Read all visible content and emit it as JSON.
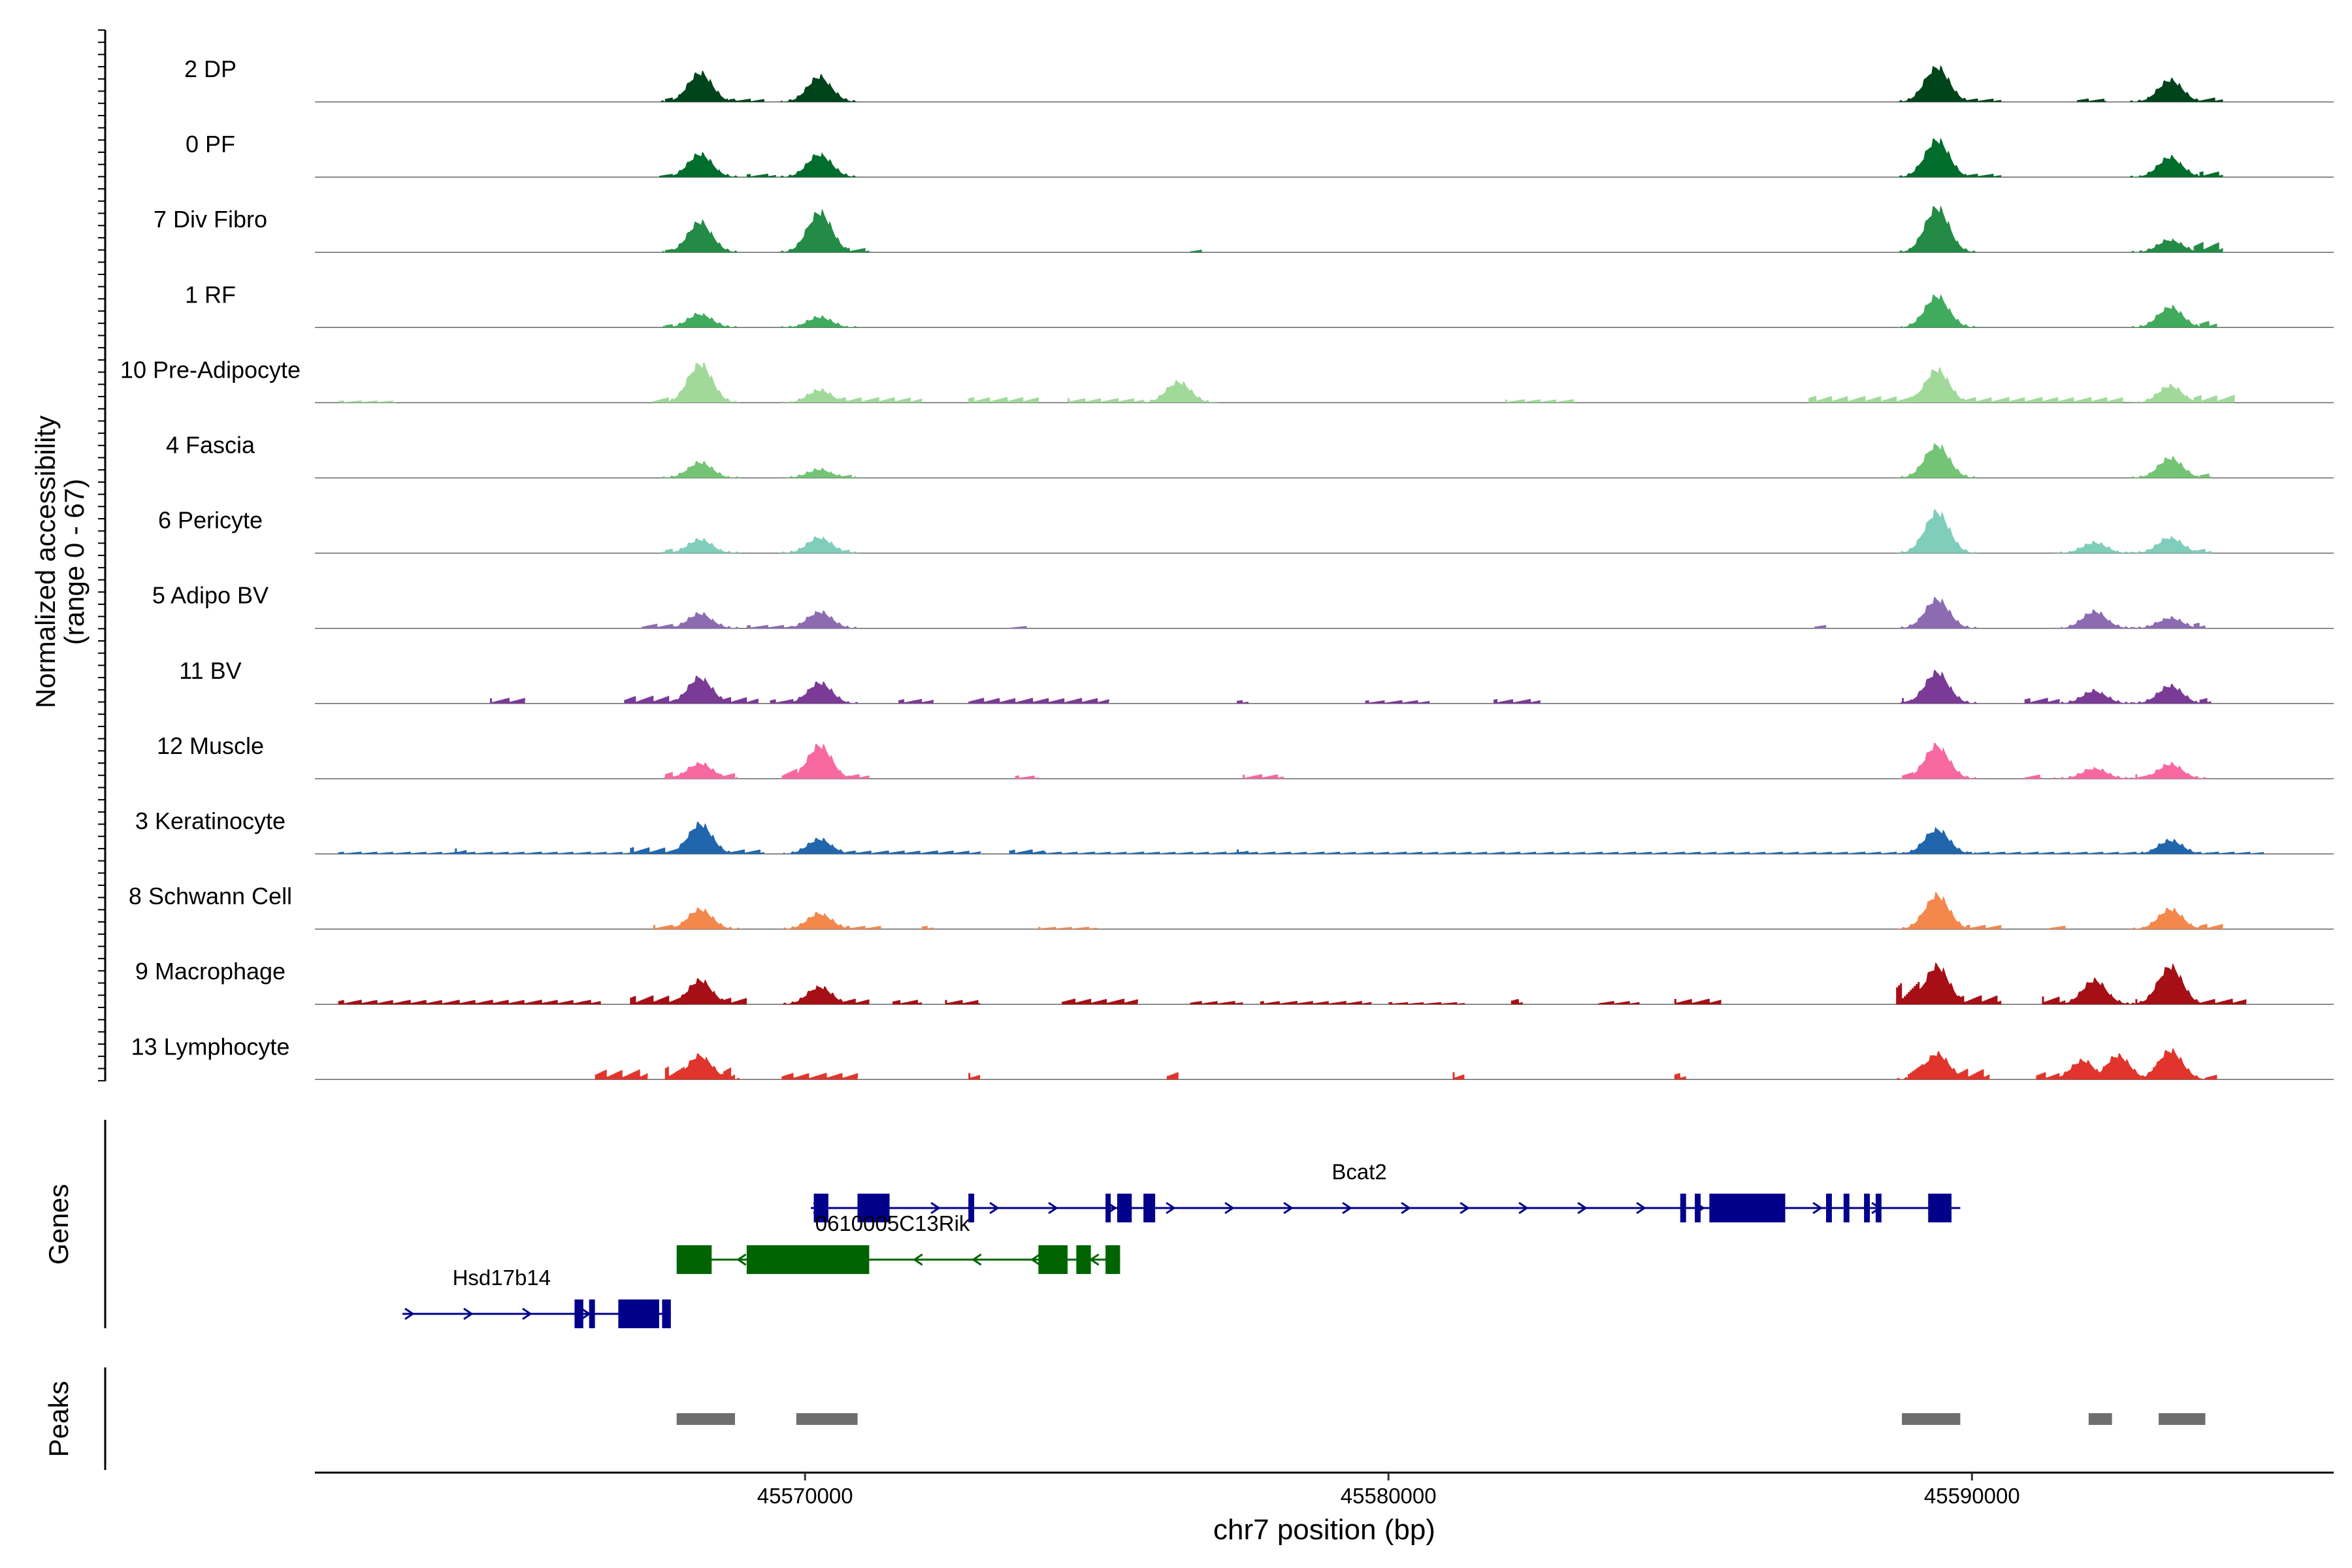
{
  "chart_data": {
    "type": "area",
    "title": "",
    "xlabel": "chr7 position (bp)",
    "ylabel_line1": "Normalized accessibility",
    "ylabel_line2": "(range 0 - 67)",
    "y_range": [
      0,
      67
    ],
    "x_range": [
      45561600,
      45596200
    ],
    "x_ticks": [
      45570000,
      45580000,
      45590000
    ],
    "x_tick_labels": [
      "45570000",
      "45580000",
      "45590000"
    ],
    "panel_labels": {
      "genes": "Genes",
      "peaks": "Peaks"
    },
    "tracks": [
      {
        "name": "2 DP",
        "color": "#00441b",
        "peaks": [
          [
            45568200,
            28
          ],
          [
            45570250,
            24
          ],
          [
            45589400,
            34
          ],
          [
            45593400,
            21
          ]
        ],
        "noise": [
          [
            45567600,
            45568000,
            4
          ],
          [
            45568700,
            45569300,
            3
          ],
          [
            45589800,
            45590500,
            3
          ],
          [
            45591800,
            45592300,
            3
          ],
          [
            45593900,
            45594300,
            4
          ]
        ]
      },
      {
        "name": "0 PF",
        "color": "#006d2c",
        "peaks": [
          [
            45568200,
            22
          ],
          [
            45570250,
            22
          ],
          [
            45589400,
            36
          ],
          [
            45593400,
            19
          ]
        ],
        "noise": [
          [
            45567500,
            45568000,
            3
          ],
          [
            45569000,
            45569500,
            3
          ],
          [
            45589900,
            45590500,
            3
          ],
          [
            45593900,
            45594300,
            5
          ]
        ]
      },
      {
        "name": "7 Div Fibro",
        "color": "#238b45",
        "peaks": [
          [
            45568200,
            29
          ],
          [
            45570250,
            39
          ],
          [
            45589400,
            43
          ],
          [
            45593400,
            12
          ]
        ],
        "noise": [
          [
            45567600,
            45567900,
            3
          ],
          [
            45570700,
            45571100,
            4
          ],
          [
            45576600,
            45576800,
            3
          ],
          [
            45593800,
            45594300,
            9
          ]
        ]
      },
      {
        "name": "1 RF",
        "color": "#41ab5d",
        "peaks": [
          [
            45568200,
            13
          ],
          [
            45570250,
            10
          ],
          [
            45589400,
            30
          ],
          [
            45593400,
            20
          ]
        ],
        "noise": [
          [
            45567600,
            45567900,
            3
          ],
          [
            45593900,
            45594200,
            6
          ]
        ]
      },
      {
        "name": "10 Pre-Adipocyte",
        "color": "#a1d99b",
        "peaks": [
          [
            45568200,
            38
          ],
          [
            45570250,
            12
          ],
          [
            45576400,
            20
          ],
          [
            45589400,
            32
          ],
          [
            45593400,
            16
          ]
        ],
        "noise": [
          [
            45562000,
            45563000,
            2
          ],
          [
            45567400,
            45567900,
            5
          ],
          [
            45570600,
            45572000,
            5
          ],
          [
            45572800,
            45574000,
            5
          ],
          [
            45574500,
            45575800,
            4
          ],
          [
            45582000,
            45583200,
            3
          ],
          [
            45587200,
            45589000,
            6
          ],
          [
            45589800,
            45592600,
            5
          ],
          [
            45593800,
            45594500,
            7
          ]
        ]
      },
      {
        "name": "4 Fascia",
        "color": "#74c476",
        "peaks": [
          [
            45568200,
            15
          ],
          [
            45570250,
            8
          ],
          [
            45589400,
            32
          ],
          [
            45593400,
            19
          ]
        ],
        "noise": [
          [
            45570600,
            45570800,
            3
          ],
          [
            45593900,
            45594100,
            4
          ]
        ]
      },
      {
        "name": "6 Pericyte",
        "color": "#7fcdbb",
        "peaks": [
          [
            45568200,
            13
          ],
          [
            45570250,
            15
          ],
          [
            45589400,
            40
          ],
          [
            45592100,
            10
          ],
          [
            45593400,
            15
          ]
        ],
        "noise": [
          [
            45567600,
            45568000,
            4
          ],
          [
            45570600,
            45570800,
            3
          ],
          [
            45593800,
            45594100,
            4
          ]
        ]
      },
      {
        "name": "5 Adipo BV",
        "color": "#8c6bb1",
        "peaks": [
          [
            45568200,
            14
          ],
          [
            45570250,
            16
          ],
          [
            45589400,
            28
          ],
          [
            45592100,
            16
          ],
          [
            45593400,
            10
          ]
        ],
        "noise": [
          [
            45567200,
            45567800,
            4
          ],
          [
            45569000,
            45569800,
            3
          ],
          [
            45573500,
            45573800,
            2
          ],
          [
            45587300,
            45587500,
            3
          ],
          [
            45593800,
            45594000,
            5
          ]
        ]
      },
      {
        "name": "11 BV",
        "color": "#7a3a96",
        "peaks": [
          [
            45568200,
            25
          ],
          [
            45570250,
            20
          ],
          [
            45589400,
            30
          ],
          [
            45592100,
            12
          ],
          [
            45593400,
            17
          ]
        ],
        "noise": [
          [
            45564600,
            45565200,
            5
          ],
          [
            45566900,
            45567800,
            7
          ],
          [
            45568600,
            45569200,
            6
          ],
          [
            45569400,
            45569800,
            4
          ],
          [
            45571600,
            45572200,
            4
          ],
          [
            45572800,
            45575200,
            5
          ],
          [
            45577400,
            45577600,
            3
          ],
          [
            45579600,
            45580700,
            3
          ],
          [
            45581800,
            45582600,
            4
          ],
          [
            45588800,
            45589100,
            5
          ],
          [
            45590900,
            45591500,
            5
          ],
          [
            45593900,
            45594100,
            5
          ]
        ]
      },
      {
        "name": "12 Muscle",
        "color": "#f768a1",
        "peaks": [
          [
            45568200,
            15
          ],
          [
            45570250,
            32
          ],
          [
            45589400,
            32
          ],
          [
            45592100,
            10
          ],
          [
            45593400,
            14
          ]
        ],
        "noise": [
          [
            45567600,
            45568000,
            6
          ],
          [
            45568500,
            45568800,
            5
          ],
          [
            45569600,
            45570000,
            9
          ],
          [
            45570700,
            45571100,
            4
          ],
          [
            45573600,
            45574000,
            3
          ],
          [
            45577500,
            45578200,
            4
          ],
          [
            45588800,
            45589100,
            6
          ],
          [
            45590900,
            45591200,
            4
          ],
          [
            45592800,
            45593100,
            4
          ]
        ]
      },
      {
        "name": "3 Keratinocyte",
        "color": "#2166ac",
        "peaks": [
          [
            45568200,
            29
          ],
          [
            45570250,
            14
          ],
          [
            45589400,
            24
          ],
          [
            45593400,
            13
          ]
        ],
        "noise": [
          [
            45562000,
            45567000,
            2
          ],
          [
            45564000,
            45564200,
            5
          ],
          [
            45567000,
            45568000,
            6
          ],
          [
            45568700,
            45569300,
            4
          ],
          [
            45570700,
            45573000,
            3
          ],
          [
            45573500,
            45574100,
            4
          ],
          [
            45574100,
            45589000,
            2
          ],
          [
            45577400,
            45577600,
            4
          ],
          [
            45589800,
            45595000,
            2
          ]
        ]
      },
      {
        "name": "8 Schwann Cell",
        "color": "#f4874c",
        "peaks": [
          [
            45568200,
            19
          ],
          [
            45570250,
            15
          ],
          [
            45589400,
            33
          ],
          [
            45593400,
            19
          ]
        ],
        "noise": [
          [
            45567400,
            45567900,
            4
          ],
          [
            45570700,
            45571300,
            3
          ],
          [
            45572000,
            45572200,
            3
          ],
          [
            45574000,
            45575000,
            2
          ],
          [
            45589900,
            45590500,
            4
          ],
          [
            45591300,
            45591600,
            3
          ],
          [
            45593900,
            45594300,
            5
          ]
        ]
      },
      {
        "name": "9 Macrophage",
        "color": "#a50f15",
        "peaks": [
          [
            45568200,
            23
          ],
          [
            45570250,
            17
          ],
          [
            45589400,
            37
          ],
          [
            45592100,
            23
          ],
          [
            45593400,
            37
          ]
        ],
        "noise": [
          [
            45562000,
            45566500,
            4
          ],
          [
            45567000,
            45568000,
            8
          ],
          [
            45568500,
            45569000,
            6
          ],
          [
            45569800,
            45570000,
            5
          ],
          [
            45570500,
            45571100,
            5
          ],
          [
            45571500,
            45572000,
            4
          ],
          [
            45572400,
            45573000,
            4
          ],
          [
            45574400,
            45575700,
            5
          ],
          [
            45576600,
            45577500,
            3
          ],
          [
            45577800,
            45579700,
            3
          ],
          [
            45580000,
            45581300,
            2
          ],
          [
            45582100,
            45582300,
            5
          ],
          [
            45583600,
            45584300,
            3
          ],
          [
            45584900,
            45585700,
            5
          ],
          [
            45588700,
            45589100,
            20
          ],
          [
            45589800,
            45590500,
            8
          ],
          [
            45591200,
            45591600,
            7
          ],
          [
            45592800,
            45593100,
            5
          ],
          [
            45593900,
            45594700,
            5
          ]
        ]
      },
      {
        "name": "13 Lymphocyte",
        "color": "#e0342c",
        "peaks": [
          [
            45568200,
            23
          ],
          [
            45589400,
            25
          ],
          [
            45591900,
            18
          ],
          [
            45592500,
            23
          ],
          [
            45593400,
            28
          ]
        ],
        "noise": [
          [
            45566400,
            45567300,
            9
          ],
          [
            45567600,
            45568000,
            12
          ],
          [
            45568600,
            45568800,
            11
          ],
          [
            45569600,
            45570900,
            6
          ],
          [
            45572800,
            45573000,
            6
          ],
          [
            45576200,
            45576400,
            7
          ],
          [
            45581100,
            45581300,
            7
          ],
          [
            45584900,
            45585100,
            6
          ],
          [
            45588900,
            45589200,
            14
          ],
          [
            45589700,
            45590300,
            10
          ],
          [
            45591100,
            45591500,
            7
          ],
          [
            45593100,
            45593200,
            14
          ],
          [
            45594000,
            45594200,
            5
          ]
        ]
      }
    ],
    "genes": [
      {
        "name": "Bcat2",
        "strand": "+",
        "row": 0,
        "color": "#00008b",
        "start": 45570100,
        "end": 45589800,
        "exons": [
          [
            45570150,
            45570400,
            "thin"
          ],
          [
            45570900,
            45571450,
            "wide"
          ],
          [
            45572800,
            45572900,
            "thin"
          ],
          [
            45575150,
            45575200,
            "thin"
          ],
          [
            45575350,
            45575600,
            "thin"
          ],
          [
            45575800,
            45576000,
            "thin"
          ],
          [
            45585000,
            45585100,
            "thin"
          ],
          [
            45585250,
            45585350,
            "thin"
          ],
          [
            45585500,
            45586800,
            "wide"
          ],
          [
            45587500,
            45587600,
            "thin"
          ],
          [
            45587800,
            45587900,
            "thin"
          ],
          [
            45588150,
            45588250,
            "thin"
          ],
          [
            45588350,
            45588450,
            "thin"
          ],
          [
            45589250,
            45589650,
            "wide"
          ]
        ],
        "label_x": 45579500,
        "label_row": "above"
      },
      {
        "name": "0610005C13Rik",
        "strand": "-",
        "row": 1,
        "color": "#006400",
        "start": 45567800,
        "end": 45575400,
        "exons": [
          [
            45567800,
            45568400,
            "wide"
          ],
          [
            45569000,
            45571100,
            "wide"
          ],
          [
            45574000,
            45574500,
            "wide"
          ],
          [
            45574650,
            45574900,
            "wide"
          ],
          [
            45575150,
            45575400,
            "wide"
          ]
        ],
        "label_x": 45571500,
        "label_row": "above"
      },
      {
        "name": "Hsd17b14",
        "strand": "+",
        "row": 2,
        "color": "#00008b",
        "start": 45563100,
        "end": 45567700,
        "exons": [
          [
            45566050,
            45566200,
            "thin"
          ],
          [
            45566300,
            45566400,
            "thin"
          ],
          [
            45566800,
            45567500,
            "wide"
          ],
          [
            45567550,
            45567700,
            "wide"
          ]
        ],
        "label_x": 45564800,
        "label_row": "above"
      }
    ],
    "peak_regions": [
      [
        45567800,
        45568800
      ],
      [
        45569850,
        45570900
      ],
      [
        45588800,
        45589800
      ],
      [
        45592000,
        45592400
      ],
      [
        45593200,
        45594000
      ]
    ]
  }
}
